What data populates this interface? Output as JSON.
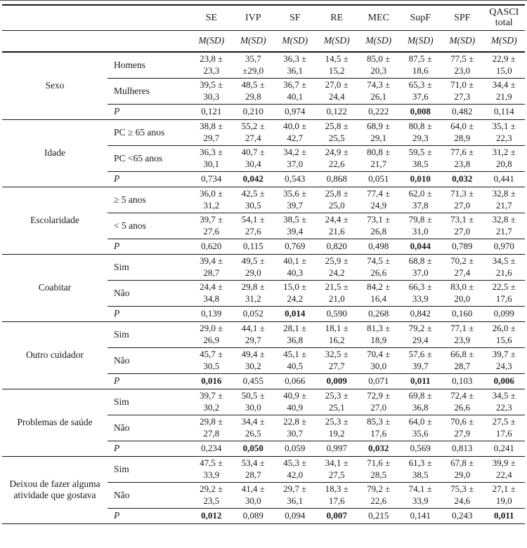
{
  "table": {
    "columns": [
      "SE",
      "IVP",
      "SF",
      "RE",
      "MEC",
      "SupF",
      "SPF",
      "QASCI total"
    ],
    "stat_header": "M(SD)",
    "p_label": "P",
    "sections": [
      {
        "group": "Sexo",
        "rows": [
          {
            "label": "Homens",
            "cells": [
              [
                "23,8 ±",
                "23,3"
              ],
              [
                "35,7",
                "±29,0"
              ],
              [
                "36,3 ±",
                "36,1"
              ],
              [
                "14,5 ±",
                "15,2"
              ],
              [
                "85,0 ±",
                "20,3"
              ],
              [
                "87,5 ±",
                "18,6"
              ],
              [
                "77,5 ±",
                "23,0"
              ],
              [
                "22,9 ±",
                "15,0"
              ]
            ]
          },
          {
            "label": "Mulheres",
            "cells": [
              [
                "39,5 ±",
                "30,3"
              ],
              [
                "48,5 ±",
                "29,8"
              ],
              [
                "36,7 ±",
                "40,1"
              ],
              [
                "27,0 ±",
                "24,4"
              ],
              [
                "74,3 ±",
                "26,1"
              ],
              [
                "65,3 ±",
                "37,6"
              ],
              [
                "71,0 ±",
                "27,3"
              ],
              [
                "34,4 ±",
                "21,9"
              ]
            ]
          }
        ],
        "p": [
          "0,121",
          "0,210",
          "0,974",
          "0,122",
          "0,222",
          "0,008",
          "0,482",
          "0,114"
        ],
        "p_bold": [
          false,
          false,
          false,
          false,
          false,
          true,
          false,
          false
        ]
      },
      {
        "group": "Idade",
        "rows": [
          {
            "label": "PC ≥ 65 anos",
            "cells": [
              [
                "38,8 ±",
                "29,7"
              ],
              [
                "55,2 ±",
                "27,4"
              ],
              [
                "40,0 ±",
                "42,7"
              ],
              [
                "25,8 ±",
                "25,5"
              ],
              [
                "68,9 ±",
                "29,1"
              ],
              [
                "80,8 ±",
                "29,3"
              ],
              [
                "64,0 ±",
                "28,9"
              ],
              [
                "35,1 ±",
                "22,3"
              ]
            ]
          },
          {
            "label": "PC <65 anos",
            "cells": [
              [
                "36,3 ±",
                "30,1"
              ],
              [
                "40,7 ±",
                "30,4"
              ],
              [
                "34,2 ±",
                "37,0"
              ],
              [
                "24,9 ±",
                "22,6"
              ],
              [
                "80,8 ±",
                "21,7"
              ],
              [
                "59,5 ±",
                "38,5"
              ],
              [
                "77,6 ±",
                "23,8"
              ],
              [
                "31,2 ±",
                "20,8"
              ]
            ]
          }
        ],
        "p": [
          "0,734",
          "0,042",
          "0,543",
          "0,868",
          "0,051",
          "0,010",
          "0,032",
          "0,441"
        ],
        "p_bold": [
          false,
          true,
          false,
          false,
          false,
          true,
          true,
          false
        ]
      },
      {
        "group": "Escolaridade",
        "rows": [
          {
            "label": "≥ 5 anos",
            "cells": [
              [
                "36,0 ±",
                "31,2"
              ],
              [
                "42,5 ±",
                "30,5"
              ],
              [
                "35,6 ±",
                "39,7"
              ],
              [
                "25,8 ±",
                "25,0"
              ],
              [
                "77,4 ±",
                "24,9"
              ],
              [
                "62,0 ±",
                "37,8"
              ],
              [
                "71,3 ±",
                "27,0"
              ],
              [
                "32,8 ±",
                "21,7"
              ]
            ]
          },
          {
            "label": "< 5 anos",
            "cells": [
              [
                "39,7 ±",
                "27,6"
              ],
              [
                "54,1 ±",
                "27,6"
              ],
              [
                "38,5 ±",
                "39,4"
              ],
              [
                "24,4 ±",
                "21,6"
              ],
              [
                "73,1 ±",
                "26,8"
              ],
              [
                "79,8 ±",
                "31,0"
              ],
              [
                "73,1 ±",
                "27,0"
              ],
              [
                "32,8 ±",
                "21,7"
              ]
            ]
          }
        ],
        "p": [
          "0,620",
          "0,115",
          "0,769",
          "0,820",
          "0,498",
          "0,044",
          "0,789",
          "0,970"
        ],
        "p_bold": [
          false,
          false,
          false,
          false,
          false,
          true,
          false,
          false
        ]
      },
      {
        "group": "Coabitar",
        "rows": [
          {
            "label": "Sim",
            "cells": [
              [
                "39,4 ±",
                "28,7"
              ],
              [
                "49,5 ±",
                "29,0"
              ],
              [
                "40,1 ±",
                "40,3"
              ],
              [
                "25,9 ±",
                "24,2"
              ],
              [
                "74,5 ±",
                "26,6"
              ],
              [
                "68,8 ±",
                "37,0"
              ],
              [
                "70,2 ±",
                "27,4"
              ],
              [
                "34,5 ±",
                "21,6"
              ]
            ]
          },
          {
            "label": "Não",
            "cells": [
              [
                "24,4 ±",
                "34,8"
              ],
              [
                "29,8 ±",
                "31,2"
              ],
              [
                "15,0 ±",
                "24,2"
              ],
              [
                "21,5 ±",
                "21,0"
              ],
              [
                "84,2 ±",
                "16,4"
              ],
              [
                "66,3 ±",
                "33,9"
              ],
              [
                "83,0 ±",
                "20,0"
              ],
              [
                "22,5 ±",
                "17,6"
              ]
            ]
          }
        ],
        "p": [
          "0,139",
          "0,052",
          "0,014",
          "0,590",
          "0,268",
          "0,842",
          "0,160",
          "0,099"
        ],
        "p_bold": [
          false,
          false,
          true,
          false,
          false,
          false,
          false,
          false
        ]
      },
      {
        "group": "Outro cuidador",
        "rows": [
          {
            "label": "Sim",
            "cells": [
              [
                "29,0 ±",
                "26,9"
              ],
              [
                "44,1 ±",
                "29,7"
              ],
              [
                "28,1 ±",
                "36,8"
              ],
              [
                "18,1 ±",
                "16,2"
              ],
              [
                "81,3 ±",
                "18,9"
              ],
              [
                "79,2 ±",
                "29,4"
              ],
              [
                "77,1 ±",
                "23,9"
              ],
              [
                "26,0 ±",
                "15,6"
              ]
            ]
          },
          {
            "label": "Não",
            "cells": [
              [
                "45,7 ±",
                "30,5"
              ],
              [
                "49,4 ±",
                "30,2"
              ],
              [
                "45,1 ±",
                "40,5"
              ],
              [
                "32,5 ±",
                "27,7"
              ],
              [
                "70,4 ±",
                "30,0"
              ],
              [
                "57,6 ±",
                "39,7"
              ],
              [
                "66,8 ±",
                "28,7"
              ],
              [
                "39,7 ±",
                "24,3"
              ]
            ]
          }
        ],
        "p": [
          "0,016",
          "0,455",
          "0,066",
          "0,009",
          "0,071",
          "0,011",
          "0,103",
          "0,006"
        ],
        "p_bold": [
          true,
          false,
          false,
          true,
          false,
          true,
          false,
          true
        ]
      },
      {
        "group": "Problemas de saúde",
        "rows": [
          {
            "label": "Sim",
            "cells": [
              [
                "39,7 ±",
                "30,2"
              ],
              [
                "50,5 ±",
                "30,0"
              ],
              [
                "40,9 ±",
                "40,9"
              ],
              [
                "25,3 ±",
                "25,1"
              ],
              [
                "72,9 ±",
                "27,0"
              ],
              [
                "69,8 ±",
                "36,8"
              ],
              [
                "72,4 ±",
                "26,6"
              ],
              [
                "34,5 ±",
                "22,3"
              ]
            ]
          },
          {
            "label": "Não",
            "cells": [
              [
                "29,8 ±",
                "27,8"
              ],
              [
                "34,4 ±",
                "26,5"
              ],
              [
                "22,8 ±",
                "30,7"
              ],
              [
                "25,3 ±",
                "19,2"
              ],
              [
                "85,3 ±",
                "17,6"
              ],
              [
                "64,0 ±",
                "35,6"
              ],
              [
                "70,6 ±",
                "27,9"
              ],
              [
                "27,5 ±",
                "17,6"
              ]
            ]
          }
        ],
        "p": [
          "0,234",
          "0,050",
          "0,059",
          "0,997",
          "0,032",
          "0,569",
          "0,813",
          "0,241"
        ],
        "p_bold": [
          false,
          true,
          false,
          false,
          true,
          false,
          false,
          false
        ]
      },
      {
        "group": "Deixou de fazer alguma atividade que gostava",
        "rows": [
          {
            "label": "Sim",
            "cells": [
              [
                "47,5 ±",
                "33,9"
              ],
              [
                "53,4 ±",
                "28,7"
              ],
              [
                "45,3 ±",
                "42,0"
              ],
              [
                "34,1 ±",
                "27,5"
              ],
              [
                "71,6 ±",
                "28,5"
              ],
              [
                "61,3 ±",
                "38,5"
              ],
              [
                "67,8 ±",
                "29,0"
              ],
              [
                "39,9 ±",
                "22,4"
              ]
            ]
          },
          {
            "label": "Não",
            "cells": [
              [
                "29,2 ±",
                "23,5"
              ],
              [
                "41,4 ±",
                "30,0"
              ],
              [
                "29,7 ±",
                "36,1"
              ],
              [
                "18,3 ±",
                "17,6"
              ],
              [
                "79,2 ±",
                "22,6"
              ],
              [
                "74,1 ±",
                "33,9"
              ],
              [
                "75,3 ±",
                "24,6"
              ],
              [
                "27,1 ±",
                "19,0"
              ]
            ]
          }
        ],
        "p": [
          "0,012",
          "0,089",
          "0,094",
          "0,007",
          "0,215",
          "0,141",
          "0,243",
          "0,011"
        ],
        "p_bold": [
          true,
          false,
          false,
          true,
          false,
          false,
          false,
          true
        ]
      }
    ]
  }
}
